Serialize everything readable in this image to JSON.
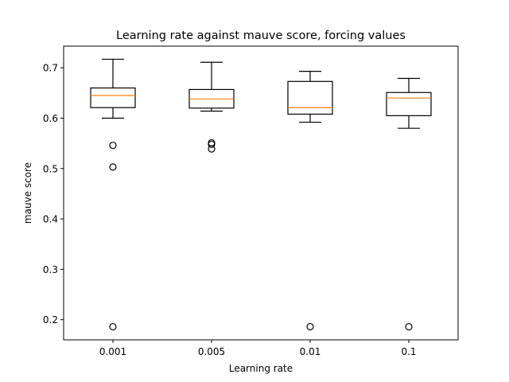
{
  "chart_data": {
    "type": "box",
    "title": "Learning rate against mauve score, forcing values",
    "xlabel": "Learning rate",
    "ylabel": "mauve score",
    "ylim": [
      0.16,
      0.743
    ],
    "yticks": [
      "0.2",
      "0.3",
      "0.4",
      "0.5",
      "0.6",
      "0.7"
    ],
    "grid": false,
    "categories": [
      "0.001",
      "0.005",
      "0.01",
      "0.1"
    ],
    "boxes": [
      {
        "category": "0.001",
        "whisker_low": 0.6,
        "q1": 0.621,
        "median": 0.645,
        "q3": 0.66,
        "whisker_high": 0.717,
        "outliers": [
          0.546,
          0.503,
          0.186
        ]
      },
      {
        "category": "0.005",
        "whisker_low": 0.614,
        "q1": 0.62,
        "median": 0.638,
        "q3": 0.657,
        "whisker_high": 0.711,
        "outliers": [
          0.551,
          0.548,
          0.539
        ]
      },
      {
        "category": "0.01",
        "whisker_low": 0.592,
        "q1": 0.608,
        "median": 0.621,
        "q3": 0.673,
        "whisker_high": 0.693,
        "outliers": [
          0.186
        ]
      },
      {
        "category": "0.1",
        "whisker_low": 0.58,
        "q1": 0.605,
        "median": 0.64,
        "q3": 0.651,
        "whisker_high": 0.679,
        "outliers": [
          0.186
        ]
      }
    ],
    "colors": {
      "box": "#000000",
      "median": "#ff7f0e",
      "axes": "#000000",
      "background": "#ffffff"
    }
  }
}
